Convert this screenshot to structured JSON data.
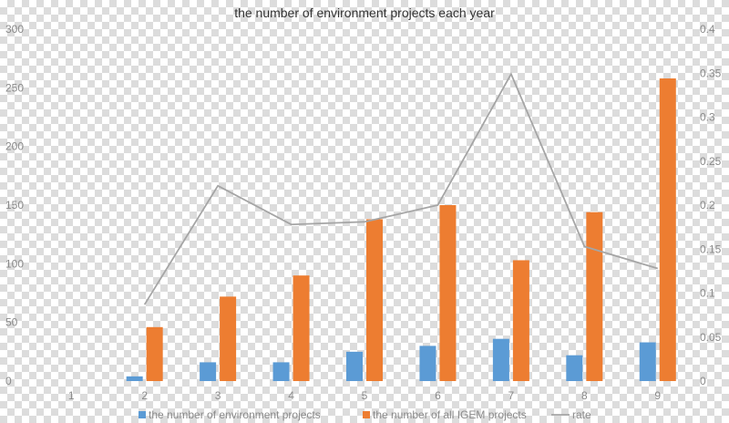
{
  "chart_data": {
    "type": "bar",
    "title": "the number of environment projects each year",
    "categories": [
      "1",
      "2",
      "3",
      "4",
      "5",
      "6",
      "7",
      "8",
      "9"
    ],
    "series": [
      {
        "name": "the number of environment projects",
        "kind": "bar",
        "axis": "left",
        "color": "#5b9bd5",
        "values": [
          0,
          4,
          16,
          16,
          25,
          30,
          36,
          22,
          33
        ]
      },
      {
        "name": "the number of all IGEM projects",
        "kind": "bar",
        "axis": "left",
        "color": "#ed7d31",
        "values": [
          0,
          46,
          72,
          90,
          138,
          150,
          103,
          144,
          258
        ]
      },
      {
        "name": "rate",
        "kind": "line",
        "axis": "right",
        "color": "#a5a5a5",
        "values": [
          null,
          0.087,
          0.222,
          0.178,
          0.181,
          0.2,
          0.349,
          0.153,
          0.128
        ]
      }
    ],
    "y_left": {
      "range": [
        0,
        300
      ],
      "ticks": [
        "0",
        "50",
        "100",
        "150",
        "200",
        "250",
        "300"
      ]
    },
    "y_right": {
      "range": [
        0,
        0.4
      ],
      "ticks": [
        "0",
        "0.05",
        "0.1",
        "0.15",
        "0.2",
        "0.25",
        "0.3",
        "0.35",
        "0.4"
      ]
    },
    "grid": false,
    "legend_position": "bottom"
  }
}
